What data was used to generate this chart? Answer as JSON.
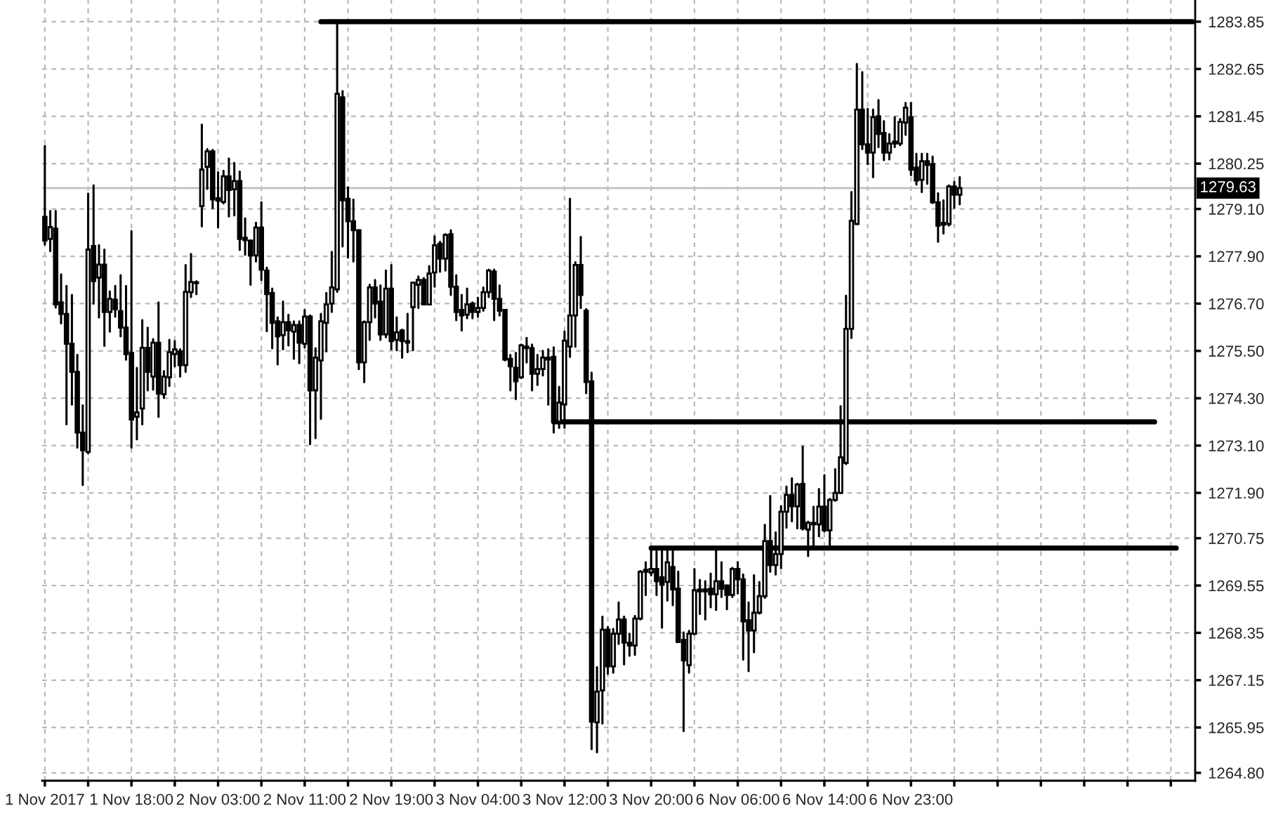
{
  "chart_data": {
    "type": "candlestick",
    "categories": [
      "1 Nov 2017",
      null,
      null,
      null,
      null,
      null,
      null,
      null,
      null,
      null,
      null,
      null,
      null,
      null,
      null,
      null,
      "1 Nov 18:00",
      null,
      null,
      null,
      null,
      null,
      null,
      null,
      null,
      null,
      null,
      null,
      null,
      null,
      null,
      null,
      "2 Nov 03:00",
      null,
      null,
      null,
      null,
      null,
      null,
      null,
      null,
      null,
      null,
      null,
      null,
      null,
      null,
      null,
      "2 Nov 11:00",
      null,
      null,
      null,
      null,
      null,
      null,
      null,
      null,
      null,
      null,
      null,
      null,
      null,
      null,
      null,
      "2 Nov 19:00",
      null,
      null,
      null,
      null,
      null,
      null,
      null,
      null,
      null,
      null,
      null,
      null,
      null,
      null,
      null,
      "3 Nov 04:00",
      null,
      null,
      null,
      null,
      null,
      null,
      null,
      null,
      null,
      null,
      null,
      null,
      null,
      null,
      null,
      "3 Nov 12:00",
      null,
      null,
      null,
      null,
      null,
      null,
      null,
      null,
      null,
      null,
      null,
      null,
      null,
      null,
      null,
      "3 Nov 20:00",
      null,
      null,
      null,
      null,
      null,
      null,
      null,
      null,
      null,
      null,
      null,
      null,
      null,
      null,
      null,
      "6 Nov 06:00",
      null,
      null,
      null,
      null,
      null,
      null,
      null,
      null,
      null,
      null,
      null,
      null,
      null,
      null,
      null,
      "6 Nov 14:00",
      null,
      null,
      null,
      null,
      null,
      null,
      null,
      null,
      null,
      null,
      null,
      null,
      null,
      null,
      null,
      "6 Nov 23:00",
      null,
      null,
      null,
      null,
      null,
      null,
      null,
      null,
      null,
      null,
      null,
      null,
      null,
      null,
      null,
      null,
      null,
      null,
      null,
      null,
      null,
      null,
      null,
      null,
      null,
      null,
      null,
      null,
      null,
      null,
      null,
      null,
      null,
      null,
      null,
      null,
      null,
      null,
      null,
      null,
      null,
      null,
      null,
      null,
      null,
      null,
      null,
      null,
      null,
      null,
      null,
      null
    ],
    "ohlc": [
      [
        1278.9,
        1280.7,
        1278.2,
        1278.3
      ],
      [
        1278.34,
        1279.05,
        1278.03,
        1278.64
      ],
      [
        1278.6,
        1279.05,
        1276.6,
        1276.68
      ],
      [
        1276.73,
        1277.44,
        1276.2,
        1276.44
      ],
      [
        1276.44,
        1277.15,
        1273.64,
        1275.68
      ],
      [
        1275.68,
        1276.92,
        1274.14,
        1274.97
      ],
      [
        1274.97,
        1275.4,
        1273.05,
        1273.43
      ],
      [
        1273.43,
        1274.12,
        1272.1,
        1272.98
      ],
      [
        1272.94,
        1279.49,
        1272.9,
        1278.07
      ],
      [
        1278.16,
        1279.7,
        1276.7,
        1277.27
      ],
      [
        1277.36,
        1278.18,
        1276.35,
        1277.69
      ],
      [
        1277.69,
        1278.07,
        1275.63,
        1276.49
      ],
      [
        1276.49,
        1277.01,
        1275.99,
        1276.82
      ],
      [
        1276.8,
        1277.15,
        1276.37,
        1276.56
      ],
      [
        1276.51,
        1277.42,
        1275.87,
        1276.09
      ],
      [
        1276.09,
        1277.15,
        1275.28,
        1275.42
      ],
      [
        1275.45,
        1278.54,
        1273.05,
        1273.76
      ],
      [
        1273.83,
        1275.07,
        1273.26,
        1273.94
      ],
      [
        1274.04,
        1276.28,
        1273.64,
        1275.58
      ],
      [
        1275.58,
        1276.09,
        1274.5,
        1274.97
      ],
      [
        1274.85,
        1275.8,
        1274.52,
        1275.71
      ],
      [
        1275.71,
        1276.73,
        1273.83,
        1274.42
      ],
      [
        1274.4,
        1274.99,
        1274.31,
        1274.85
      ],
      [
        1274.83,
        1275.78,
        1274.61,
        1275.47
      ],
      [
        1275.42,
        1275.75,
        1275.11,
        1275.54
      ],
      [
        1275.49,
        1275.54,
        1274.85,
        1275.14
      ],
      [
        1275.14,
        1277.68,
        1274.97,
        1277.0
      ],
      [
        1276.99,
        1277.96,
        1276.87,
        1277.25
      ],
      [
        1277.22,
        1277.27,
        1276.94,
        1277.24
      ],
      [
        1279.17,
        1281.24,
        1278.66,
        1280.1
      ],
      [
        1280.17,
        1280.62,
        1279.61,
        1280.56
      ],
      [
        1280.56,
        1280.6,
        1279.12,
        1279.34
      ],
      [
        1279.37,
        1280.03,
        1278.63,
        1279.31
      ],
      [
        1279.28,
        1280.07,
        1279.24,
        1279.93
      ],
      [
        1279.93,
        1280.38,
        1278.91,
        1279.58
      ],
      [
        1279.6,
        1280.27,
        1278.94,
        1279.81
      ],
      [
        1279.81,
        1280.05,
        1278.06,
        1278.34
      ],
      [
        1278.37,
        1278.86,
        1277.94,
        1278.31
      ],
      [
        1278.3,
        1278.3,
        1277.18,
        1277.92
      ],
      [
        1277.92,
        1278.75,
        1277.77,
        1278.63
      ],
      [
        1278.63,
        1279.27,
        1277.3,
        1277.56
      ],
      [
        1277.54,
        1277.61,
        1276.0,
        1276.94
      ],
      [
        1276.97,
        1277.08,
        1275.57,
        1276.21
      ],
      [
        1276.25,
        1276.35,
        1275.16,
        1275.87
      ],
      [
        1275.9,
        1276.75,
        1275.54,
        1276.23
      ],
      [
        1276.23,
        1276.42,
        1275.64,
        1276.02
      ],
      [
        1275.99,
        1276.25,
        1275.3,
        1276.16
      ],
      [
        1276.16,
        1276.25,
        1275.19,
        1275.71
      ],
      [
        1275.68,
        1276.54,
        1275.59,
        1276.37
      ],
      [
        1276.37,
        1276.4,
        1273.14,
        1274.5
      ],
      [
        1274.5,
        1275.57,
        1273.29,
        1275.33
      ],
      [
        1275.26,
        1276.44,
        1273.78,
        1276.25
      ],
      [
        1276.21,
        1276.97,
        1275.49,
        1276.68
      ],
      [
        1276.7,
        1278.01,
        1276.49,
        1277.11
      ],
      [
        1277.06,
        1283.85,
        1277.0,
        1282.02
      ],
      [
        1281.93,
        1282.09,
        1278.15,
        1279.32
      ],
      [
        1279.36,
        1279.65,
        1277.87,
        1278.79
      ],
      [
        1278.79,
        1279.34,
        1277.77,
        1278.56
      ],
      [
        1278.56,
        1278.56,
        1275.04,
        1275.21
      ],
      [
        1275.21,
        1276.25,
        1274.71,
        1276.23
      ],
      [
        1276.23,
        1277.18,
        1275.78,
        1277.11
      ],
      [
        1277.11,
        1277.3,
        1276.35,
        1276.7
      ],
      [
        1276.75,
        1277.16,
        1275.78,
        1275.92
      ],
      [
        1275.92,
        1277.54,
        1275.85,
        1277.08
      ],
      [
        1277.08,
        1277.68,
        1275.54,
        1275.75
      ],
      [
        1275.78,
        1276.35,
        1275.52,
        1275.97
      ],
      [
        1276.02,
        1276.04,
        1275.33,
        1275.75
      ],
      [
        1275.75,
        1276.44,
        1275.47,
        1275.71
      ],
      [
        1276.61,
        1277.23,
        1275.52,
        1277.23
      ],
      [
        1277.18,
        1277.39,
        1276.59,
        1277.3
      ],
      [
        1277.3,
        1277.35,
        1276.68,
        1276.68
      ],
      [
        1276.68,
        1277.65,
        1276.68,
        1277.46
      ],
      [
        1277.49,
        1278.41,
        1277.13,
        1278.18
      ],
      [
        1278.22,
        1278.27,
        1277.51,
        1277.84
      ],
      [
        1277.84,
        1278.46,
        1277.54,
        1278.44
      ],
      [
        1278.46,
        1278.56,
        1276.92,
        1277.13
      ],
      [
        1277.13,
        1277.42,
        1276.28,
        1276.49
      ],
      [
        1276.54,
        1276.92,
        1276.02,
        1276.4
      ],
      [
        1276.42,
        1277.08,
        1276.33,
        1276.68
      ],
      [
        1276.7,
        1276.73,
        1276.33,
        1276.49
      ],
      [
        1276.49,
        1276.85,
        1276.37,
        1276.59
      ],
      [
        1276.59,
        1277.11,
        1276.52,
        1276.99
      ],
      [
        1276.99,
        1277.56,
        1276.87,
        1277.54
      ],
      [
        1277.51,
        1277.56,
        1276.28,
        1276.82
      ],
      [
        1276.82,
        1277.16,
        1276.4,
        1276.52
      ],
      [
        1276.54,
        1276.54,
        1275.26,
        1275.28
      ],
      [
        1275.3,
        1275.4,
        1274.5,
        1275.11
      ],
      [
        1275.07,
        1275.45,
        1274.28,
        1274.73
      ],
      [
        1274.83,
        1275.66,
        1274.81,
        1275.64
      ],
      [
        1275.61,
        1275.83,
        1275.21,
        1275.57
      ],
      [
        1275.57,
        1275.66,
        1274.5,
        1274.92
      ],
      [
        1274.92,
        1275.4,
        1274.64,
        1275.04
      ],
      [
        1275.04,
        1275.5,
        1274.88,
        1275.33
      ],
      [
        1275.33,
        1275.54,
        1274.14,
        1275.28
      ],
      [
        1275.35,
        1275.59,
        1273.43,
        1273.71
      ],
      [
        1273.71,
        1274.59,
        1273.55,
        1274.19
      ],
      [
        1274.14,
        1275.99,
        1273.55,
        1275.76
      ],
      [
        1275.61,
        1279.36,
        1275.35,
        1276.4
      ],
      [
        1276.4,
        1277.75,
        1275.61,
        1277.68
      ],
      [
        1277.68,
        1278.39,
        1276.59,
        1276.92
      ],
      [
        1276.52,
        1276.56,
        1274.43,
        1274.71
      ],
      [
        1274.73,
        1274.95,
        1265.4,
        1266.1
      ],
      [
        1266.08,
        1267.48,
        1265.32,
        1266.86
      ],
      [
        1266.89,
        1268.76,
        1266.05,
        1268.43
      ],
      [
        1268.43,
        1268.5,
        1267.31,
        1267.5
      ],
      [
        1267.5,
        1268.45,
        1267.34,
        1268.33
      ],
      [
        1268.33,
        1269.12,
        1268.07,
        1268.69
      ],
      [
        1268.69,
        1268.76,
        1267.55,
        1268.1
      ],
      [
        1268.1,
        1268.33,
        1267.77,
        1268.03
      ],
      [
        1268.03,
        1268.78,
        1267.79,
        1268.71
      ],
      [
        1268.71,
        1269.92,
        1268.69,
        1269.9
      ],
      [
        1269.9,
        1270.14,
        1269.31,
        1269.95
      ],
      [
        1269.88,
        1270.49,
        1269.81,
        1269.97
      ],
      [
        1269.97,
        1270.49,
        1269.31,
        1269.66
      ],
      [
        1269.76,
        1270.42,
        1268.48,
        1269.57
      ],
      [
        1269.64,
        1270.47,
        1269.17,
        1270.14
      ],
      [
        1270.02,
        1270.47,
        1269.05,
        1269.45
      ],
      [
        1269.47,
        1269.9,
        1268.12,
        1268.12
      ],
      [
        1268.17,
        1268.36,
        1265.86,
        1267.65
      ],
      [
        1267.53,
        1268.4,
        1267.34,
        1268.33
      ],
      [
        1268.33,
        1269.97,
        1268.31,
        1269.43
      ],
      [
        1269.45,
        1269.69,
        1268.83,
        1269.4
      ],
      [
        1269.4,
        1269.66,
        1268.69,
        1269.45
      ],
      [
        1269.47,
        1269.85,
        1269.0,
        1269.33
      ],
      [
        1269.33,
        1270.45,
        1268.93,
        1269.66
      ],
      [
        1269.66,
        1270.14,
        1269.26,
        1269.47
      ],
      [
        1269.55,
        1269.55,
        1268.95,
        1269.31
      ],
      [
        1269.31,
        1270.0,
        1269.26,
        1269.97
      ],
      [
        1269.97,
        1270.14,
        1269.35,
        1269.71
      ],
      [
        1269.71,
        1269.83,
        1267.67,
        1268.64
      ],
      [
        1268.67,
        1269.12,
        1267.38,
        1268.41
      ],
      [
        1268.41,
        1269.81,
        1267.86,
        1268.86
      ],
      [
        1268.86,
        1269.64,
        1268.84,
        1269.28
      ],
      [
        1269.28,
        1271.09,
        1269.24,
        1270.68
      ],
      [
        1270.68,
        1271.82,
        1269.9,
        1270.07
      ],
      [
        1270.07,
        1270.9,
        1269.83,
        1270.35
      ],
      [
        1270.35,
        1271.56,
        1269.99,
        1271.42
      ],
      [
        1271.42,
        1272.06,
        1271.02,
        1271.85
      ],
      [
        1271.85,
        1272.27,
        1271.18,
        1271.56
      ],
      [
        1271.56,
        1272.13,
        1271.0,
        1272.11
      ],
      [
        1272.13,
        1273.07,
        1270.97,
        1271.0
      ],
      [
        1270.97,
        1271.17,
        1270.3,
        1271.14
      ],
      [
        1271.14,
        1271.55,
        1270.54,
        1271.1
      ],
      [
        1271.1,
        1272.0,
        1270.8,
        1271.55
      ],
      [
        1271.55,
        1272.35,
        1270.92,
        1270.95
      ],
      [
        1270.95,
        1271.75,
        1270.54,
        1271.72
      ],
      [
        1271.72,
        1272.5,
        1271.7,
        1271.9
      ],
      [
        1271.9,
        1274.1,
        1271.9,
        1272.8
      ],
      [
        1272.66,
        1276.9,
        1272.63,
        1276.06
      ],
      [
        1276.06,
        1279.53,
        1275.83,
        1278.8
      ],
      [
        1278.72,
        1282.78,
        1278.72,
        1281.62
      ],
      [
        1281.62,
        1282.57,
        1280.62,
        1280.74
      ],
      [
        1280.74,
        1281.64,
        1280.24,
        1280.53
      ],
      [
        1280.53,
        1281.62,
        1279.91,
        1281.43
      ],
      [
        1281.45,
        1281.86,
        1280.67,
        1281.0
      ],
      [
        1281.03,
        1281.33,
        1280.34,
        1280.53
      ],
      [
        1280.53,
        1281.0,
        1280.36,
        1280.76
      ],
      [
        1280.76,
        1281.43,
        1280.67,
        1280.81
      ],
      [
        1280.76,
        1281.38,
        1280.72,
        1281.31
      ],
      [
        1281.29,
        1281.79,
        1280.98,
        1281.67
      ],
      [
        1281.43,
        1281.79,
        1279.96,
        1280.1
      ],
      [
        1280.15,
        1280.5,
        1279.72,
        1279.82
      ],
      [
        1279.84,
        1280.5,
        1279.53,
        1280.31
      ],
      [
        1280.31,
        1280.5,
        1279.74,
        1280.22
      ],
      [
        1280.24,
        1280.43,
        1279.25,
        1279.27
      ],
      [
        1279.27,
        1279.5,
        1278.27,
        1278.68
      ],
      [
        1278.75,
        1279.32,
        1278.48,
        1278.7
      ],
      [
        1278.72,
        1279.7,
        1278.68,
        1279.67
      ],
      [
        1279.67,
        1279.79,
        1279.13,
        1279.46
      ],
      [
        1279.46,
        1279.91,
        1279.22,
        1279.63
      ],
      null,
      null,
      null,
      null,
      null,
      null,
      null,
      null,
      null,
      null,
      null,
      null,
      null,
      null,
      null,
      null,
      null,
      null,
      null,
      null,
      null,
      null,
      null,
      null,
      null,
      null,
      null,
      null,
      null,
      null,
      null,
      null,
      null,
      null,
      null,
      null,
      null,
      null,
      null,
      null,
      null,
      null,
      null
    ],
    "series": [
      {
        "type": "line",
        "color": "#000000",
        "values": [
          null,
          null,
          null,
          null,
          null,
          null,
          null,
          null,
          null,
          null,
          null,
          null,
          null,
          null,
          null,
          null,
          null,
          null,
          null,
          null,
          null,
          null,
          null,
          null,
          null,
          null,
          null,
          null,
          null,
          null,
          null,
          null,
          null,
          null,
          null,
          null,
          null,
          null,
          null,
          null,
          null,
          null,
          null,
          null,
          null,
          null,
          null,
          null,
          null,
          null,
          null,
          1283.85,
          1283.85,
          1283.85,
          1283.85,
          1283.85,
          1283.85,
          1283.85,
          1283.85,
          1283.85,
          1283.85,
          1283.85,
          1283.85,
          1283.85,
          1283.85,
          1283.85,
          1283.85,
          1283.85,
          1283.85,
          1283.85,
          1283.85,
          1283.85,
          1283.85,
          1283.85,
          1283.85,
          1283.85,
          1283.85,
          1283.85,
          1283.85,
          1283.85,
          1283.85,
          1283.85,
          1283.85,
          1283.85,
          1283.85,
          1283.85,
          1283.85,
          1283.85,
          1283.85,
          1283.85,
          1283.85,
          1283.85,
          1283.85,
          1283.85,
          1283.85,
          1283.85,
          1283.85,
          1283.85,
          1283.85,
          1283.85,
          1283.85,
          1283.85,
          1283.85,
          1283.85,
          1283.85,
          1283.85,
          1283.85,
          1283.85,
          1283.85,
          1283.85,
          1283.85,
          1283.85,
          1283.85,
          1283.85,
          1283.85,
          1283.85,
          1283.85,
          1283.85,
          1283.85,
          1283.85,
          1283.85,
          1283.85,
          1283.85,
          1283.85,
          1283.85,
          1283.85,
          1283.85,
          1283.85,
          1283.85,
          1283.85,
          1283.85,
          1283.85,
          1283.85,
          1283.85,
          1283.85,
          1283.85,
          1283.85,
          1283.85,
          1283.85,
          1283.85,
          1283.85,
          1283.85,
          1283.85,
          1283.85,
          1283.85,
          1283.85,
          1283.85,
          1283.85,
          1283.85,
          1283.85,
          1283.85,
          1283.85,
          1283.85,
          1283.85,
          1283.85,
          1283.85,
          1283.85,
          1283.85,
          1283.85,
          1283.85,
          1283.85,
          1283.85,
          1283.85,
          1283.85,
          1283.85,
          1283.85,
          1283.85,
          1283.85,
          1283.85,
          1283.85,
          1283.85,
          1283.85,
          1283.85,
          1283.85,
          1283.85,
          1283.85,
          1283.85,
          1283.85,
          1283.85,
          1283.85,
          1283.85,
          1283.85,
          1283.85,
          1283.85,
          1283.85,
          1283.85,
          1283.85,
          1283.85,
          1283.85,
          1283.85,
          1283.85,
          1283.85,
          1283.85,
          1283.85,
          1283.85,
          1283.85,
          1283.85,
          1283.85,
          1283.85,
          1283.85,
          1283.85,
          1283.85,
          1283.85,
          1283.85,
          1283.85,
          1283.85,
          1283.85,
          1283.85,
          1283.85,
          1283.85,
          1283.85,
          1283.85,
          1283.85
        ]
      },
      {
        "type": "line",
        "color": "#000000",
        "values": [
          null,
          null,
          null,
          null,
          null,
          null,
          null,
          null,
          null,
          null,
          null,
          null,
          null,
          null,
          null,
          null,
          null,
          null,
          null,
          null,
          null,
          null,
          null,
          null,
          null,
          null,
          null,
          null,
          null,
          null,
          null,
          null,
          null,
          null,
          null,
          null,
          null,
          null,
          null,
          null,
          null,
          null,
          null,
          null,
          null,
          null,
          null,
          null,
          null,
          null,
          null,
          null,
          null,
          null,
          null,
          null,
          null,
          null,
          null,
          null,
          null,
          null,
          null,
          null,
          null,
          null,
          null,
          null,
          null,
          null,
          null,
          null,
          null,
          null,
          null,
          null,
          null,
          null,
          null,
          null,
          null,
          null,
          null,
          null,
          null,
          null,
          null,
          null,
          null,
          null,
          null,
          null,
          null,
          null,
          1273.7,
          1273.7,
          1273.7,
          1273.7,
          1273.7,
          1273.7,
          1273.7,
          1273.7,
          1273.7,
          1273.7,
          1273.7,
          1273.7,
          1273.7,
          1273.7,
          1273.7,
          1273.7,
          1273.7,
          1273.7,
          1273.7,
          1273.7,
          1273.7,
          1273.7,
          1273.7,
          1273.7,
          1273.7,
          1273.7,
          1273.7,
          1273.7,
          1273.7,
          1273.7,
          1273.7,
          1273.7,
          1273.7,
          1273.7,
          1273.7,
          1273.7,
          1273.7,
          1273.7,
          1273.7,
          1273.7,
          1273.7,
          1273.7,
          1273.7,
          1273.7,
          1273.7,
          1273.7,
          1273.7,
          1273.7,
          1273.7,
          1273.7,
          1273.7,
          1273.7,
          1273.7,
          1273.7,
          1273.7,
          1273.7,
          1273.7,
          1273.7,
          1273.7,
          1273.7,
          1273.7,
          1273.7,
          1273.7,
          1273.7,
          1273.7,
          1273.7,
          1273.7,
          1273.7,
          1273.7,
          1273.7,
          1273.7,
          1273.7,
          1273.7,
          1273.7,
          1273.7,
          1273.7,
          1273.7,
          1273.7,
          1273.7,
          1273.7,
          1273.7,
          1273.7,
          1273.7,
          1273.7,
          1273.7,
          1273.7,
          1273.7,
          1273.7,
          1273.7,
          1273.7,
          1273.7,
          1273.7,
          1273.7,
          1273.7,
          1273.7,
          1273.7,
          1273.7,
          1273.7,
          1273.7,
          1273.7,
          1273.7,
          1273.7,
          1273.7,
          1273.7,
          1273.7,
          1273.7,
          1273.7,
          1273.7,
          1273.7,
          1273.7,
          1273.7,
          1273.7,
          null,
          null,
          null,
          null,
          null,
          null,
          null
        ]
      },
      {
        "type": "line",
        "color": "#000000",
        "values": [
          null,
          null,
          null,
          null,
          null,
          null,
          null,
          null,
          null,
          null,
          null,
          null,
          null,
          null,
          null,
          null,
          null,
          null,
          null,
          null,
          null,
          null,
          null,
          null,
          null,
          null,
          null,
          null,
          null,
          null,
          null,
          null,
          null,
          null,
          null,
          null,
          null,
          null,
          null,
          null,
          null,
          null,
          null,
          null,
          null,
          null,
          null,
          null,
          null,
          null,
          null,
          null,
          null,
          null,
          null,
          null,
          null,
          null,
          null,
          null,
          null,
          null,
          null,
          null,
          null,
          null,
          null,
          null,
          null,
          null,
          null,
          null,
          null,
          null,
          null,
          null,
          null,
          null,
          null,
          null,
          null,
          null,
          null,
          null,
          null,
          null,
          null,
          null,
          null,
          null,
          null,
          null,
          null,
          null,
          null,
          null,
          null,
          null,
          null,
          null,
          null,
          null,
          null,
          null,
          null,
          null,
          null,
          null,
          null,
          null,
          null,
          null,
          1270.5,
          1270.5,
          1270.5,
          1270.5,
          1270.5,
          1270.5,
          1270.5,
          1270.5,
          1270.5,
          1270.5,
          1270.5,
          1270.5,
          1270.5,
          1270.5,
          1270.5,
          1270.5,
          1270.5,
          1270.5,
          1270.5,
          1270.5,
          1270.5,
          1270.5,
          1270.5,
          1270.5,
          1270.5,
          1270.5,
          1270.5,
          1270.5,
          1270.5,
          1270.5,
          1270.5,
          1270.5,
          1270.5,
          1270.5,
          1270.5,
          1270.5,
          1270.5,
          1270.5,
          1270.5,
          1270.5,
          1270.5,
          1270.5,
          1270.5,
          1270.5,
          1270.5,
          1270.5,
          1270.5,
          1270.5,
          1270.5,
          1270.5,
          1270.5,
          1270.5,
          1270.5,
          1270.5,
          1270.5,
          1270.5,
          1270.5,
          1270.5,
          1270.5,
          1270.5,
          1270.5,
          1270.5,
          1270.5,
          1270.5,
          1270.5,
          1270.5,
          1270.5,
          1270.5,
          1270.5,
          1270.5,
          1270.5,
          1270.5,
          1270.5,
          1270.5,
          1270.5,
          1270.5,
          1270.5,
          1270.5,
          1270.5,
          1270.5,
          1270.5,
          1270.5,
          1270.5,
          1270.5,
          1270.5,
          1270.5,
          1270.5,
          1270.5,
          1270.5,
          1270.5,
          1270.5,
          1270.5,
          1270.5,
          1270.5,
          1270.5,
          1270.5,
          1270.5,
          1270.5,
          null,
          null,
          null
        ]
      }
    ],
    "ylim": [
      1264.6,
      1284.4
    ],
    "yticks": [
      {
        "value": 1264.8,
        "label": "1264.80"
      },
      1265.95,
      {
        "value": 1267.15,
        "label": "1267.15"
      },
      {
        "value": 1268.35,
        "label": "1268.35"
      },
      1269.55,
      1270.75,
      {
        "value": 1271.9,
        "label": "1271.90"
      },
      {
        "value": 1273.1,
        "label": "1273.10"
      },
      {
        "value": 1274.3,
        "label": "1274.30"
      },
      {
        "value": 1275.5,
        "label": "1275.50"
      },
      {
        "value": 1276.7,
        "label": "1276.70"
      },
      {
        "value": 1277.9,
        "label": "1277.90"
      },
      {
        "value": 1279.1,
        "label": "1279.10"
      },
      1280.25,
      1281.45,
      1282.65,
      1283.85
    ],
    "ref_lines": [
      {
        "axis": "y",
        "value": 1279.63,
        "label": "1279.63",
        "color": "#c0c0c0"
      }
    ],
    "grid": true
  }
}
